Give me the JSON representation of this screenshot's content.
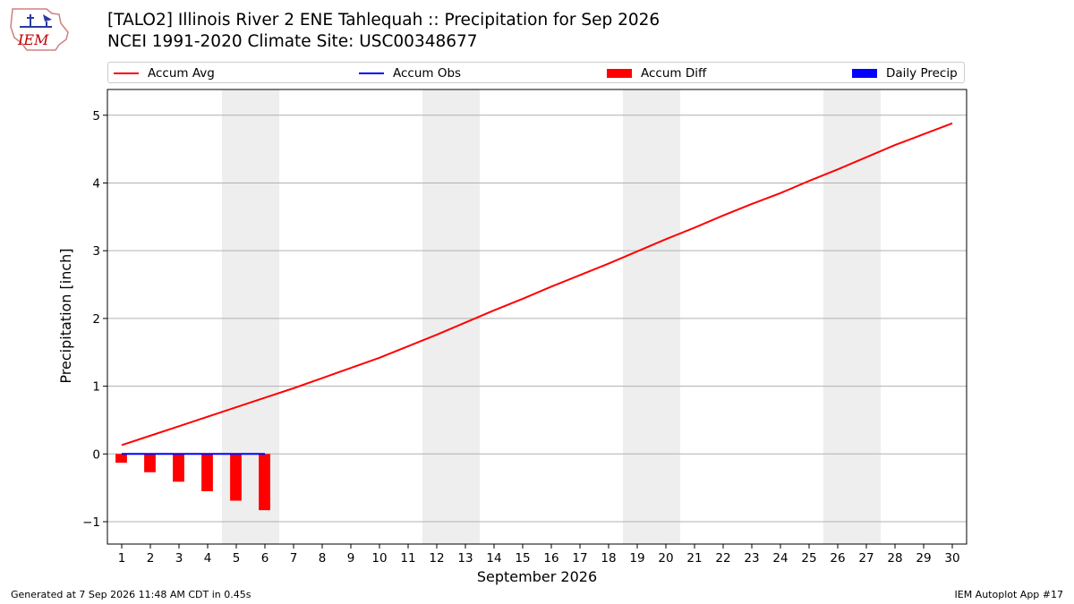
{
  "logo": {
    "text": "IEM",
    "name": "iem-logo"
  },
  "header": {
    "title1": "[TALO2] Illinois River 2 ENE Tahlequah :: Precipitation for Sep 2026",
    "title2": "NCEI 1991-2020 Climate Site: USC00348677"
  },
  "legend": {
    "items": [
      {
        "label": "Accum Avg",
        "kind": "line",
        "color": "#ff0000"
      },
      {
        "label": "Accum Obs",
        "kind": "line",
        "color": "#0000ff"
      },
      {
        "label": "Accum Diff",
        "kind": "patch",
        "color": "#ff0000"
      },
      {
        "label": "Daily Precip",
        "kind": "patch",
        "color": "#0000ff"
      }
    ]
  },
  "footer": {
    "generated": "Generated at 7 Sep 2026 11:48 AM CDT in 0.45s",
    "app": "IEM Autoplot App #17"
  },
  "chart_data": {
    "type": "line",
    "xlabel": "September 2026",
    "ylabel": "Precipitation [inch]",
    "xlim": [
      0.5,
      30.5
    ],
    "ylim": [
      -1.33,
      5.38
    ],
    "yticks": [
      -1,
      0,
      1,
      2,
      3,
      4,
      5
    ],
    "ytick_labels": [
      "−1",
      "0",
      "1",
      "2",
      "3",
      "4",
      "5"
    ],
    "xticks": [
      1,
      2,
      3,
      4,
      5,
      6,
      7,
      8,
      9,
      10,
      11,
      12,
      13,
      14,
      15,
      16,
      17,
      18,
      19,
      20,
      21,
      22,
      23,
      24,
      25,
      26,
      27,
      28,
      29,
      30
    ],
    "grid": "horizontal",
    "legend_position": "top",
    "weekend_shading": [
      [
        5,
        6
      ],
      [
        12,
        13
      ],
      [
        19,
        20
      ],
      [
        26,
        27
      ]
    ],
    "shade_color": "#eeeeee",
    "series": [
      {
        "name": "Accum Avg",
        "kind": "line",
        "color": "#ff0000",
        "x": [
          1,
          2,
          3,
          4,
          5,
          6,
          7,
          8,
          9,
          10,
          11,
          12,
          13,
          14,
          15,
          16,
          17,
          18,
          19,
          20,
          21,
          22,
          23,
          24,
          25,
          26,
          27,
          28,
          29,
          30
        ],
        "values": [
          0.13,
          0.27,
          0.41,
          0.55,
          0.69,
          0.83,
          0.97,
          1.12,
          1.27,
          1.42,
          1.59,
          1.76,
          1.94,
          2.12,
          2.29,
          2.47,
          2.64,
          2.81,
          2.99,
          3.17,
          3.34,
          3.52,
          3.69,
          3.85,
          4.03,
          4.2,
          4.38,
          4.56,
          4.72,
          4.88
        ]
      },
      {
        "name": "Accum Obs",
        "kind": "line",
        "color": "#0000ff",
        "x": [
          1,
          2,
          3,
          4,
          5,
          6
        ],
        "values": [
          0,
          0,
          0,
          0,
          0,
          0
        ]
      },
      {
        "name": "Accum Diff",
        "kind": "bar",
        "color": "#ff0000",
        "x": [
          1,
          2,
          3,
          4,
          5,
          6
        ],
        "values": [
          -0.13,
          -0.27,
          -0.41,
          -0.55,
          -0.69,
          -0.83
        ]
      },
      {
        "name": "Daily Precip",
        "kind": "bar",
        "color": "#0000ff",
        "x": [
          1,
          2,
          3,
          4,
          5,
          6
        ],
        "values": [
          0,
          0,
          0,
          0,
          0,
          0
        ]
      }
    ]
  }
}
